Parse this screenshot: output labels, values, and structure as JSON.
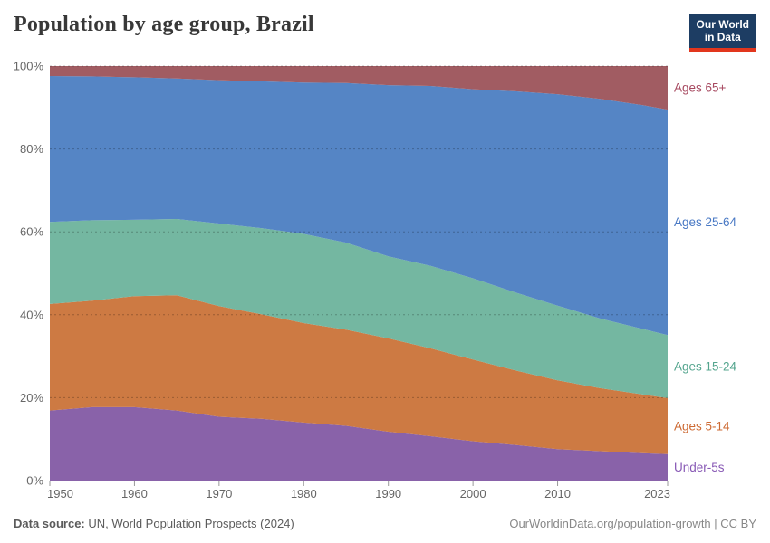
{
  "header": {
    "title": "Population by age group, Brazil",
    "logo": {
      "line1": "Our World",
      "line2": "in Data",
      "bg_color": "#1d3d63",
      "accent_color": "#e2361d"
    }
  },
  "footer": {
    "source_label": "Data source:",
    "source_text": " UN, World Population Prospects (2024)",
    "credit": "OurWorldinData.org/population-growth | CC BY"
  },
  "chart_data": {
    "type": "area",
    "stacked": true,
    "percent_scale": true,
    "title": "Population by age group, Brazil",
    "xlabel": "",
    "ylabel": "",
    "xlim": [
      1950,
      2023
    ],
    "ylim": [
      0,
      100
    ],
    "grid": "horizontal-dashed",
    "legend_position": "right-edge-labels",
    "x": [
      1950,
      1955,
      1960,
      1965,
      1970,
      1975,
      1980,
      1985,
      1990,
      1995,
      2000,
      2005,
      2010,
      2015,
      2020,
      2023
    ],
    "x_ticks": [
      "1950",
      "1960",
      "1970",
      "1980",
      "1990",
      "2000",
      "2010",
      "2023"
    ],
    "x_tick_years": [
      1950,
      1960,
      1970,
      1980,
      1990,
      2000,
      2010,
      2023
    ],
    "y_ticks": [
      0,
      20,
      40,
      60,
      80,
      100
    ],
    "y_tick_suffix": "%",
    "series": [
      {
        "name": "Under-5s",
        "color": "#8962a9",
        "label_color": "#8859b5",
        "values": [
          16.9,
          17.7,
          17.7,
          16.9,
          15.4,
          14.9,
          14.0,
          13.2,
          11.8,
          10.7,
          9.5,
          8.6,
          7.6,
          7.1,
          6.6,
          6.4
        ]
      },
      {
        "name": "Ages 5-14",
        "color": "#cd7a43",
        "label_color": "#cd6a33",
        "values": [
          25.7,
          25.7,
          26.8,
          27.8,
          26.7,
          25.2,
          24.0,
          23.2,
          22.5,
          21.2,
          19.7,
          18.0,
          16.6,
          15.2,
          14.2,
          13.5
        ]
      },
      {
        "name": "Ages 15-24",
        "color": "#74b7a1",
        "label_color": "#54a58e",
        "values": [
          19.8,
          19.4,
          18.4,
          18.4,
          19.9,
          20.8,
          21.5,
          21.0,
          19.8,
          19.9,
          19.6,
          18.8,
          18.0,
          16.8,
          15.8,
          15.2
        ]
      },
      {
        "name": "Ages 25-64",
        "color": "#5585c5",
        "label_color": "#4878c4",
        "values": [
          35.2,
          34.7,
          34.4,
          33.9,
          34.6,
          35.4,
          36.5,
          38.5,
          41.3,
          43.4,
          45.6,
          48.5,
          51.0,
          53.0,
          54.0,
          54.4
        ]
      },
      {
        "name": "Ages 65+",
        "color": "#a15c62",
        "label_color": "#a74960",
        "values": [
          2.4,
          2.5,
          2.7,
          3.0,
          3.4,
          3.7,
          4.0,
          4.1,
          4.6,
          4.8,
          5.6,
          6.1,
          6.8,
          7.9,
          9.4,
          10.5
        ]
      }
    ],
    "axis_text_color": "#666666",
    "gridline_color": "rgba(0,0,0,0.25)",
    "tick_mark_color": "#999999"
  }
}
